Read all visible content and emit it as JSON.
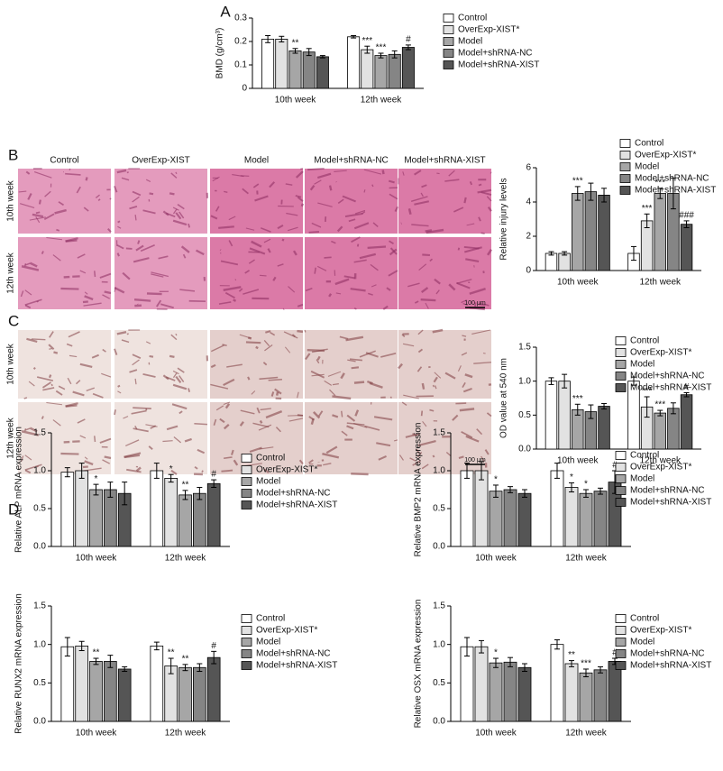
{
  "panels": [
    "A",
    "B",
    "C",
    "D"
  ],
  "histology": [
    {
      "columns": [
        "Control",
        "OverExp-XIST",
        "Model",
        "Model+shRNA-NC",
        "Model+shRNA-XIST"
      ],
      "rows": [
        "10th week",
        "12th week"
      ],
      "scale_bar": "100 μm"
    },
    {
      "rows": [
        "10th week",
        "12th week"
      ],
      "scale_bar": "100 μm"
    }
  ],
  "chart_data": [
    {
      "type": "bar",
      "ylabel": "BMD (g/cm³)",
      "categories": [
        "10th week",
        "12th week"
      ],
      "ylim": [
        0,
        0.3
      ],
      "yticks": [
        0,
        0.1,
        0.2,
        0.3
      ],
      "series": [
        {
          "name": "Control",
          "color": "#ffffff",
          "values": [
            0.21,
            0.22
          ],
          "errors": [
            0.015,
            0.005
          ],
          "significance": [
            null,
            null
          ]
        },
        {
          "name": "OverExp-XIST*",
          "color": "#e2e2e2",
          "values": [
            0.21,
            0.165
          ],
          "errors": [
            0.012,
            0.015
          ],
          "significance": [
            null,
            "***"
          ]
        },
        {
          "name": "Model",
          "color": "#a6a6a6",
          "values": [
            0.16,
            0.14
          ],
          "errors": [
            0.01,
            0.01
          ],
          "significance": [
            "**",
            "***"
          ]
        },
        {
          "name": "Model+shRNA-NC",
          "color": "#858585",
          "values": [
            0.155,
            0.145
          ],
          "errors": [
            0.015,
            0.015
          ],
          "significance": [
            null,
            null
          ]
        },
        {
          "name": "Model+shRNA-XIST",
          "color": "#555555",
          "values": [
            0.135,
            0.175
          ],
          "errors": [
            0.005,
            0.01
          ],
          "significance": [
            null,
            "#"
          ]
        }
      ]
    },
    {
      "type": "bar",
      "ylabel": "Relative injury levels",
      "categories": [
        "10th week",
        "12th week"
      ],
      "ylim": [
        0,
        6
      ],
      "yticks": [
        0,
        2,
        4,
        6
      ],
      "series": [
        {
          "name": "Control",
          "color": "#ffffff",
          "values": [
            1.0,
            1.0
          ],
          "errors": [
            0.1,
            0.4
          ],
          "significance": [
            null,
            null
          ]
        },
        {
          "name": "OverExp-XIST*",
          "color": "#e2e2e2",
          "values": [
            1.0,
            2.9
          ],
          "errors": [
            0.1,
            0.4
          ],
          "significance": [
            null,
            "***"
          ]
        },
        {
          "name": "Model",
          "color": "#a6a6a6",
          "values": [
            4.5,
            4.5
          ],
          "errors": [
            0.4,
            0.3
          ],
          "significance": [
            "***",
            "***"
          ]
        },
        {
          "name": "Model+shRNA-NC",
          "color": "#858585",
          "values": [
            4.6,
            4.5
          ],
          "errors": [
            0.5,
            0.9
          ],
          "significance": [
            null,
            null
          ]
        },
        {
          "name": "Model+shRNA-XIST",
          "color": "#555555",
          "values": [
            4.4,
            2.7
          ],
          "errors": [
            0.4,
            0.2
          ],
          "significance": [
            null,
            "###"
          ]
        }
      ]
    },
    {
      "type": "bar",
      "ylabel": "OD value at 540 nm",
      "categories": [
        "10th week",
        "12th week"
      ],
      "ylim": [
        0,
        1.5
      ],
      "yticks": [
        {
          "value": 0,
          "label": "0.0"
        },
        0.5,
        {
          "value": 1,
          "label": "1.0"
        },
        1.5
      ],
      "series": [
        {
          "name": "Control",
          "color": "#ffffff",
          "values": [
            1.0,
            1.0
          ],
          "errors": [
            0.05,
            0.06
          ],
          "significance": [
            null,
            null
          ]
        },
        {
          "name": "OverExp-XIST*",
          "color": "#e2e2e2",
          "values": [
            1.0,
            0.62
          ],
          "errors": [
            0.1,
            0.15
          ],
          "significance": [
            null,
            "***"
          ]
        },
        {
          "name": "Model",
          "color": "#a6a6a6",
          "values": [
            0.58,
            0.53
          ],
          "errors": [
            0.08,
            0.04
          ],
          "significance": [
            "***",
            "***"
          ]
        },
        {
          "name": "Model+shRNA-NC",
          "color": "#858585",
          "values": [
            0.55,
            0.6
          ],
          "errors": [
            0.1,
            0.08
          ],
          "significance": [
            null,
            null
          ]
        },
        {
          "name": "Model+shRNA-XIST",
          "color": "#555555",
          "values": [
            0.63,
            0.8
          ],
          "errors": [
            0.04,
            0.03
          ],
          "significance": [
            null,
            "#"
          ]
        }
      ]
    },
    {
      "type": "bar",
      "ylabel": "Relative ALP mRNA expression",
      "categories": [
        "10th week",
        "12th week"
      ],
      "ylim": [
        0,
        1.5
      ],
      "yticks": [
        {
          "value": 0,
          "label": "0.0"
        },
        0.5,
        {
          "value": 1,
          "label": "1.0"
        },
        1.5
      ],
      "series": [
        {
          "name": "Control",
          "color": "#ffffff",
          "values": [
            0.98,
            1.0
          ],
          "errors": [
            0.06,
            0.1
          ],
          "significance": [
            null,
            null
          ]
        },
        {
          "name": "OverExp-XIST*",
          "color": "#e2e2e2",
          "values": [
            1.0,
            0.9
          ],
          "errors": [
            0.1,
            0.05
          ],
          "significance": [
            null,
            "*"
          ]
        },
        {
          "name": "Model",
          "color": "#a6a6a6",
          "values": [
            0.75,
            0.68
          ],
          "errors": [
            0.07,
            0.06
          ],
          "significance": [
            "*",
            "**"
          ]
        },
        {
          "name": "Model+shRNA-NC",
          "color": "#858585",
          "values": [
            0.75,
            0.7
          ],
          "errors": [
            0.1,
            0.08
          ],
          "significance": [
            null,
            null
          ]
        },
        {
          "name": "Model+shRNA-XIST",
          "color": "#555555",
          "values": [
            0.7,
            0.83
          ],
          "errors": [
            0.15,
            0.05
          ],
          "significance": [
            null,
            "#"
          ]
        }
      ]
    },
    {
      "type": "bar",
      "ylabel": "Relative BMP2 mRNA expression",
      "categories": [
        "10th week",
        "12th week"
      ],
      "ylim": [
        0,
        1.5
      ],
      "yticks": [
        {
          "value": 0,
          "label": "0.0"
        },
        0.5,
        {
          "value": 1,
          "label": "1.0"
        },
        1.5
      ],
      "series": [
        {
          "name": "Control",
          "color": "#ffffff",
          "values": [
            1.0,
            1.0
          ],
          "errors": [
            0.1,
            0.1
          ],
          "significance": [
            null,
            null
          ]
        },
        {
          "name": "OverExp-XIST*",
          "color": "#e2e2e2",
          "values": [
            1.0,
            0.78
          ],
          "errors": [
            0.12,
            0.06
          ],
          "significance": [
            null,
            "*"
          ]
        },
        {
          "name": "Model",
          "color": "#a6a6a6",
          "values": [
            0.73,
            0.7
          ],
          "errors": [
            0.08,
            0.05
          ],
          "significance": [
            "*",
            "*"
          ]
        },
        {
          "name": "Model+shRNA-NC",
          "color": "#858585",
          "values": [
            0.75,
            0.73
          ],
          "errors": [
            0.04,
            0.04
          ],
          "significance": [
            null,
            null
          ]
        },
        {
          "name": "Model+shRNA-XIST",
          "color": "#555555",
          "values": [
            0.7,
            0.85
          ],
          "errors": [
            0.05,
            0.15
          ],
          "significance": [
            null,
            "#"
          ]
        }
      ]
    },
    {
      "type": "bar",
      "ylabel": "Relative RUNX2 mRNA expression",
      "categories": [
        "10th week",
        "12th week"
      ],
      "ylim": [
        0,
        1.5
      ],
      "yticks": [
        {
          "value": 0,
          "label": "0.0"
        },
        0.5,
        {
          "value": 1,
          "label": "1.0"
        },
        1.5
      ],
      "series": [
        {
          "name": "Control",
          "color": "#ffffff",
          "values": [
            0.97,
            0.98
          ],
          "errors": [
            0.12,
            0.05
          ],
          "significance": [
            null,
            null
          ]
        },
        {
          "name": "OverExp-XIST*",
          "color": "#e2e2e2",
          "values": [
            0.98,
            0.72
          ],
          "errors": [
            0.06,
            0.1
          ],
          "significance": [
            null,
            "**"
          ]
        },
        {
          "name": "Model",
          "color": "#a6a6a6",
          "values": [
            0.78,
            0.7
          ],
          "errors": [
            0.04,
            0.04
          ],
          "significance": [
            "**",
            "**"
          ]
        },
        {
          "name": "Model+shRNA-NC",
          "color": "#858585",
          "values": [
            0.78,
            0.7
          ],
          "errors": [
            0.08,
            0.05
          ],
          "significance": [
            null,
            null
          ]
        },
        {
          "name": "Model+shRNA-XIST",
          "color": "#555555",
          "values": [
            0.68,
            0.83
          ],
          "errors": [
            0.03,
            0.08
          ],
          "significance": [
            null,
            "#"
          ]
        }
      ]
    },
    {
      "type": "bar",
      "ylabel": "Relative OSX mRNA expression",
      "categories": [
        "10th week",
        "12th week"
      ],
      "ylim": [
        0,
        1.5
      ],
      "yticks": [
        {
          "value": 0,
          "label": "0.0"
        },
        0.5,
        {
          "value": 1,
          "label": "1.0"
        },
        1.5
      ],
      "series": [
        {
          "name": "Control",
          "color": "#ffffff",
          "values": [
            0.97,
            1.0
          ],
          "errors": [
            0.12,
            0.06
          ],
          "significance": [
            null,
            null
          ]
        },
        {
          "name": "OverExp-XIST*",
          "color": "#e2e2e2",
          "values": [
            0.97,
            0.75
          ],
          "errors": [
            0.08,
            0.04
          ],
          "significance": [
            null,
            "**"
          ]
        },
        {
          "name": "Model",
          "color": "#a6a6a6",
          "values": [
            0.76,
            0.63
          ],
          "errors": [
            0.06,
            0.05
          ],
          "significance": [
            "*",
            "***"
          ]
        },
        {
          "name": "Model+shRNA-NC",
          "color": "#858585",
          "values": [
            0.77,
            0.67
          ],
          "errors": [
            0.06,
            0.04
          ],
          "significance": [
            null,
            null
          ]
        },
        {
          "name": "Model+shRNA-XIST",
          "color": "#555555",
          "values": [
            0.7,
            0.78
          ],
          "errors": [
            0.05,
            0.04
          ],
          "significance": [
            null,
            "#"
          ]
        }
      ]
    }
  ]
}
